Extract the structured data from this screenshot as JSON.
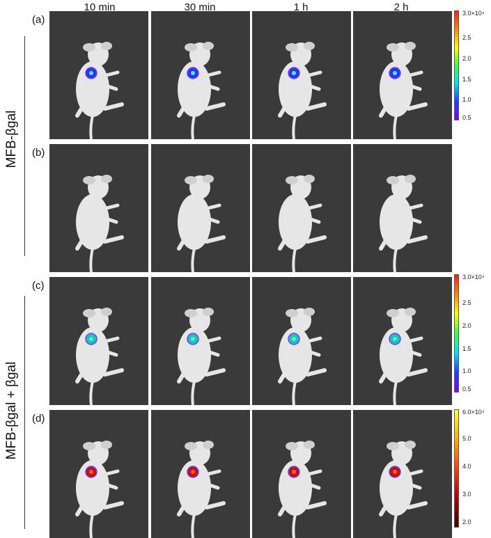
{
  "columns": [
    "10 min",
    "30 min",
    "1 h",
    "2 h"
  ],
  "rows": [
    {
      "label": "(a)",
      "signal": "blue"
    },
    {
      "label": "(b)",
      "signal": "none"
    },
    {
      "label": "(c)",
      "signal": "cyan"
    },
    {
      "label": "(d)",
      "signal": "red"
    }
  ],
  "groups": [
    "MFB-βgal",
    "MFB-βgal + βgal"
  ],
  "colorbars": [
    {
      "ticks": [
        "3.0×10⁴",
        "2.5",
        "2.0",
        "1.5",
        "1.0",
        "0.5"
      ],
      "scale": "rainbow"
    },
    {
      "ticks": [
        "3.0×10⁴",
        "2.5",
        "2.0",
        "1.5",
        "1.0",
        "0.5"
      ],
      "scale": "rainbow"
    },
    {
      "ticks": [
        "6.0×10⁴",
        "5.0",
        "4.0",
        "3.0",
        "2.0"
      ],
      "scale": "heat"
    }
  ],
  "colors": {
    "panel_bg": "#3a3a3a",
    "mouse": "#e6e6e6",
    "signal_blue": "#3030ff",
    "signal_cyan": "#20c0c0",
    "signal_red": "#c01010"
  }
}
